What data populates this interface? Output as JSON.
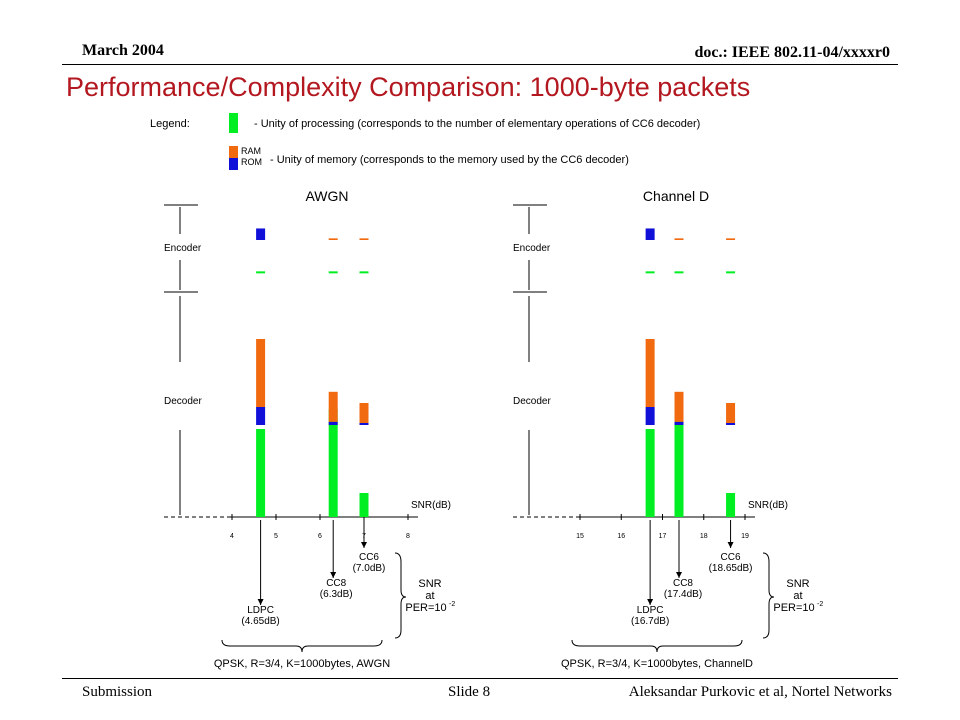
{
  "header": {
    "date": "March 2004",
    "doc": "doc.: IEEE 802.11-04/xxxxr0"
  },
  "title": "Performance/Complexity Comparison: 1000-byte packets",
  "legend": {
    "label": "Legend:",
    "processing_text": "- Unity of processing (corresponds to the number of elementary operations of CC6 decoder)",
    "ram_label": "RAM",
    "rom_label": "ROM",
    "memory_text": "- Unity of memory (corresponds to the memory used by the CC6 decoder)",
    "colors": {
      "processing": "#00ee22",
      "ram": "#f26a10",
      "rom": "#1010d8"
    }
  },
  "chart_data": [
    {
      "type": "bar",
      "title": "AWGN",
      "xlabel": "SNR(dB)",
      "x_ticks": [
        "4",
        "5",
        "6",
        "7",
        "8"
      ],
      "xlim": [
        4,
        8
      ],
      "row_labels": [
        "Encoder",
        "Decoder"
      ],
      "codes": [
        {
          "name": "LDPC",
          "snr": 4.65,
          "label": "LDPC\n(4.65dB)",
          "encoder": {
            "processing": 0.05,
            "ram": 0.0,
            "rom": 0.35
          },
          "decoder": {
            "processing": 2.2,
            "ram": 1.7,
            "rom": 0.45
          }
        },
        {
          "name": "CC8",
          "snr": 6.3,
          "label": "CC8\n(6.3dB)",
          "encoder": {
            "processing": 0.05,
            "ram": 0.05,
            "rom": 0.0
          },
          "decoder": {
            "processing": 2.7,
            "ram": 0.75,
            "rom": 0.08
          }
        },
        {
          "name": "CC6",
          "snr": 7.0,
          "label": "CC6\n(7.0dB)",
          "encoder": {
            "processing": 0.05,
            "ram": 0.05,
            "rom": 0.0
          },
          "decoder": {
            "processing": 0.6,
            "ram": 0.5,
            "rom": 0.05
          }
        }
      ],
      "annotation": {
        "line1": "SNR",
        "line2": "at",
        "line3": "PER=10",
        "exp": "-2"
      },
      "caption": "QPSK, R=3/4, K=1000bytes, AWGN"
    },
    {
      "type": "bar",
      "title": "Channel D",
      "xlabel": "SNR(dB)",
      "x_ticks": [
        "15",
        "16",
        "17",
        "18",
        "19"
      ],
      "xlim": [
        15,
        19
      ],
      "row_labels": [
        "Encoder",
        "Decoder"
      ],
      "codes": [
        {
          "name": "LDPC",
          "snr": 16.7,
          "label": "LDPC\n(16.7dB)",
          "encoder": {
            "processing": 0.05,
            "ram": 0.0,
            "rom": 0.35
          },
          "decoder": {
            "processing": 2.2,
            "ram": 1.7,
            "rom": 0.45
          }
        },
        {
          "name": "CC8",
          "snr": 17.4,
          "label": "CC8\n(17.4dB)",
          "encoder": {
            "processing": 0.05,
            "ram": 0.05,
            "rom": 0.0
          },
          "decoder": {
            "processing": 2.7,
            "ram": 0.75,
            "rom": 0.08
          }
        },
        {
          "name": "CC6",
          "snr": 18.65,
          "label": "CC6\n(18.65dB)",
          "encoder": {
            "processing": 0.05,
            "ram": 0.05,
            "rom": 0.0
          },
          "decoder": {
            "processing": 0.6,
            "ram": 0.5,
            "rom": 0.05
          }
        }
      ],
      "annotation": {
        "line1": "SNR",
        "line2": "at",
        "line3": "PER=10",
        "exp": "-2"
      },
      "caption": "QPSK, R=3/4, K=1000bytes, ChannelD"
    }
  ],
  "footer": {
    "left": "Submission",
    "center": "Slide 8",
    "right": "Aleksandar Purkovic et al, Nortel Networks"
  }
}
